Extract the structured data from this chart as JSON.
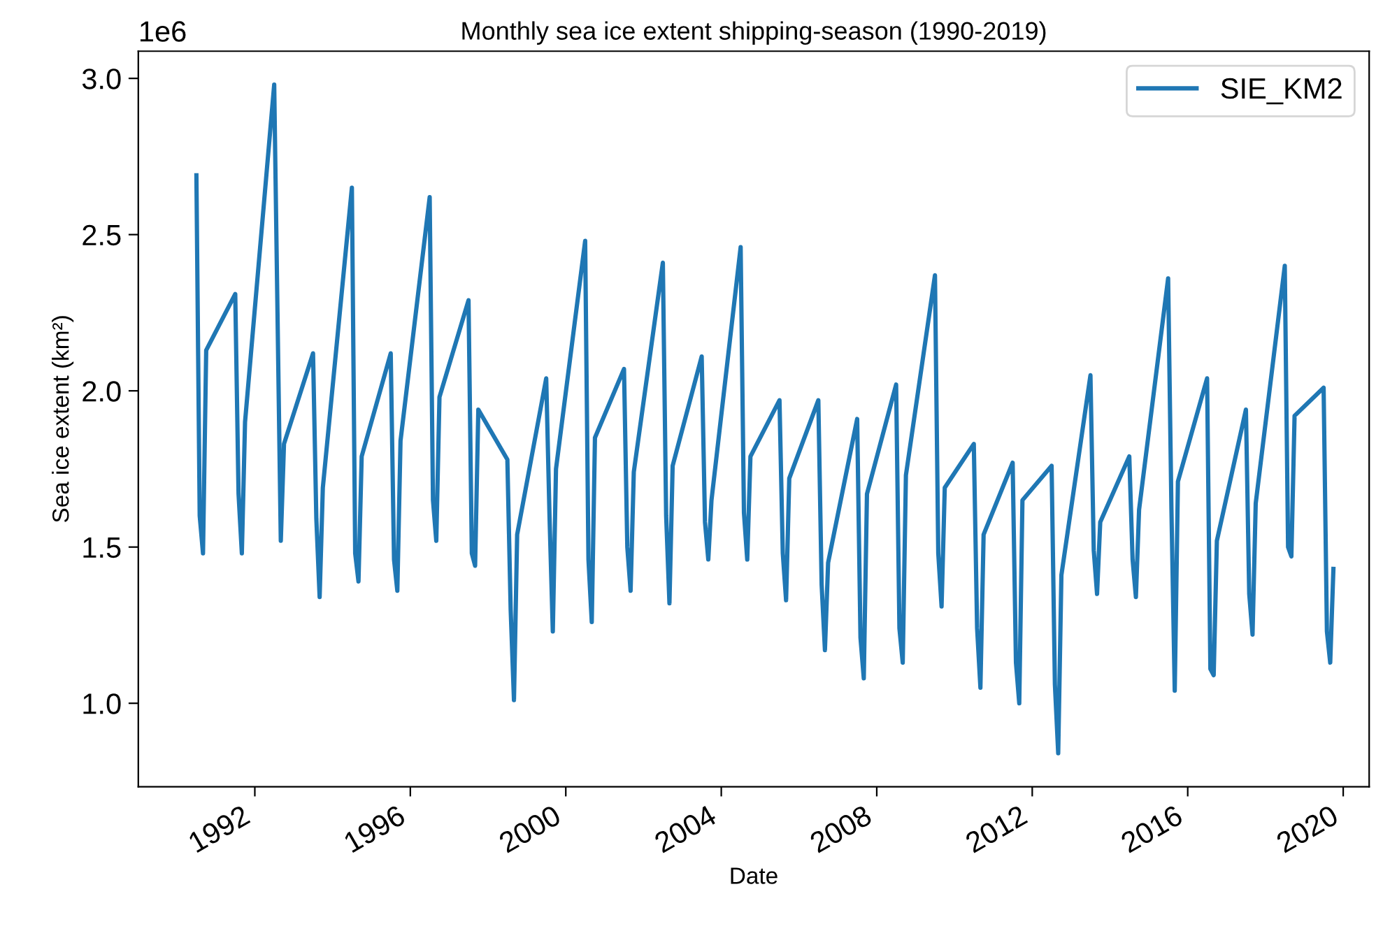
{
  "chart_data": {
    "type": "line",
    "title": "Monthly sea ice extent shipping-season (1990-2019)",
    "xlabel": "Date",
    "ylabel": "Sea ice extent (km²)",
    "annotations": [
      "1e6"
    ],
    "x": [
      "1990-07",
      "1990-08",
      "1990-09",
      "1990-10",
      "1991-07",
      "1991-08",
      "1991-09",
      "1991-10",
      "1992-07",
      "1992-08",
      "1992-09",
      "1992-10",
      "1993-07",
      "1993-08",
      "1993-09",
      "1993-10",
      "1994-07",
      "1994-08",
      "1994-09",
      "1994-10",
      "1995-07",
      "1995-08",
      "1995-09",
      "1995-10",
      "1996-07",
      "1996-08",
      "1996-09",
      "1996-10",
      "1997-07",
      "1997-08",
      "1997-09",
      "1997-10",
      "1998-07",
      "1998-08",
      "1998-09",
      "1998-10",
      "1999-07",
      "1999-08",
      "1999-09",
      "1999-10",
      "2000-07",
      "2000-08",
      "2000-09",
      "2000-10",
      "2001-07",
      "2001-08",
      "2001-09",
      "2001-10",
      "2002-07",
      "2002-08",
      "2002-09",
      "2002-10",
      "2003-07",
      "2003-08",
      "2003-09",
      "2003-10",
      "2004-07",
      "2004-08",
      "2004-09",
      "2004-10",
      "2005-07",
      "2005-08",
      "2005-09",
      "2005-10",
      "2006-07",
      "2006-08",
      "2006-09",
      "2006-10",
      "2007-07",
      "2007-08",
      "2007-09",
      "2007-10",
      "2008-07",
      "2008-08",
      "2008-09",
      "2008-10",
      "2009-07",
      "2009-08",
      "2009-09",
      "2009-10",
      "2010-07",
      "2010-08",
      "2010-09",
      "2010-10",
      "2011-07",
      "2011-08",
      "2011-09",
      "2011-10",
      "2012-07",
      "2012-08",
      "2012-09",
      "2012-10",
      "2013-07",
      "2013-08",
      "2013-09",
      "2013-10",
      "2014-07",
      "2014-08",
      "2014-09",
      "2014-10",
      "2015-07",
      "2015-08",
      "2015-09",
      "2015-10",
      "2016-07",
      "2016-08",
      "2016-09",
      "2016-10",
      "2017-07",
      "2017-08",
      "2017-09",
      "2017-10",
      "2018-07",
      "2018-08",
      "2018-09",
      "2018-10",
      "2019-07",
      "2019-08",
      "2019-09",
      "2019-10"
    ],
    "series": [
      {
        "name": "SIE_KM2",
        "color": "#1f77b4",
        "values": [
          2.69,
          1.6,
          1.48,
          2.13,
          2.31,
          1.67,
          1.48,
          1.9,
          2.98,
          2.25,
          1.52,
          1.83,
          2.12,
          1.59,
          1.34,
          1.69,
          2.65,
          1.48,
          1.39,
          1.79,
          2.12,
          1.46,
          1.36,
          1.84,
          2.62,
          1.65,
          1.52,
          1.98,
          2.29,
          1.48,
          1.44,
          1.94,
          1.78,
          1.3,
          1.01,
          1.54,
          2.04,
          1.6,
          1.23,
          1.75,
          2.48,
          1.46,
          1.26,
          1.85,
          2.07,
          1.5,
          1.36,
          1.74,
          2.41,
          1.6,
          1.32,
          1.76,
          2.11,
          1.58,
          1.46,
          1.65,
          2.46,
          1.61,
          1.46,
          1.79,
          1.97,
          1.48,
          1.33,
          1.72,
          1.97,
          1.38,
          1.17,
          1.45,
          1.91,
          1.21,
          1.08,
          1.67,
          2.02,
          1.24,
          1.13,
          1.73,
          2.37,
          1.48,
          1.31,
          1.69,
          1.83,
          1.24,
          1.05,
          1.54,
          1.77,
          1.13,
          1.0,
          1.65,
          1.76,
          1.06,
          0.84,
          1.41,
          2.05,
          1.49,
          1.35,
          1.58,
          1.79,
          1.46,
          1.34,
          1.62,
          2.36,
          1.62,
          1.04,
          1.71,
          2.04,
          1.11,
          1.09,
          1.52,
          1.94,
          1.35,
          1.22,
          1.64,
          2.4,
          1.5,
          1.47,
          1.92,
          2.01,
          1.23,
          1.13,
          1.43
        ]
      }
    ],
    "xlim": [
      "1989-01-01",
      "2020-09-01"
    ],
    "xticks": [
      {
        "value": "1992-01-01",
        "label": "1992"
      },
      {
        "value": "1996-01-01",
        "label": "1996"
      },
      {
        "value": "2000-01-01",
        "label": "2000"
      },
      {
        "value": "2004-01-01",
        "label": "2004"
      },
      {
        "value": "2008-01-01",
        "label": "2008"
      },
      {
        "value": "2012-01-01",
        "label": "2012"
      },
      {
        "value": "2016-01-01",
        "label": "2016"
      },
      {
        "value": "2020-01-01",
        "label": "2020"
      }
    ],
    "ylim": [
      0.733,
      3.087
    ],
    "yticks": [
      {
        "value": 1.0,
        "label": "1.0"
      },
      1.5,
      {
        "value": 2.0,
        "label": "2.0"
      },
      2.5,
      {
        "value": 3.0,
        "label": "3.0"
      }
    ],
    "grid": false,
    "legend": "top right",
    "marker": "none",
    "line_style": "solid"
  }
}
